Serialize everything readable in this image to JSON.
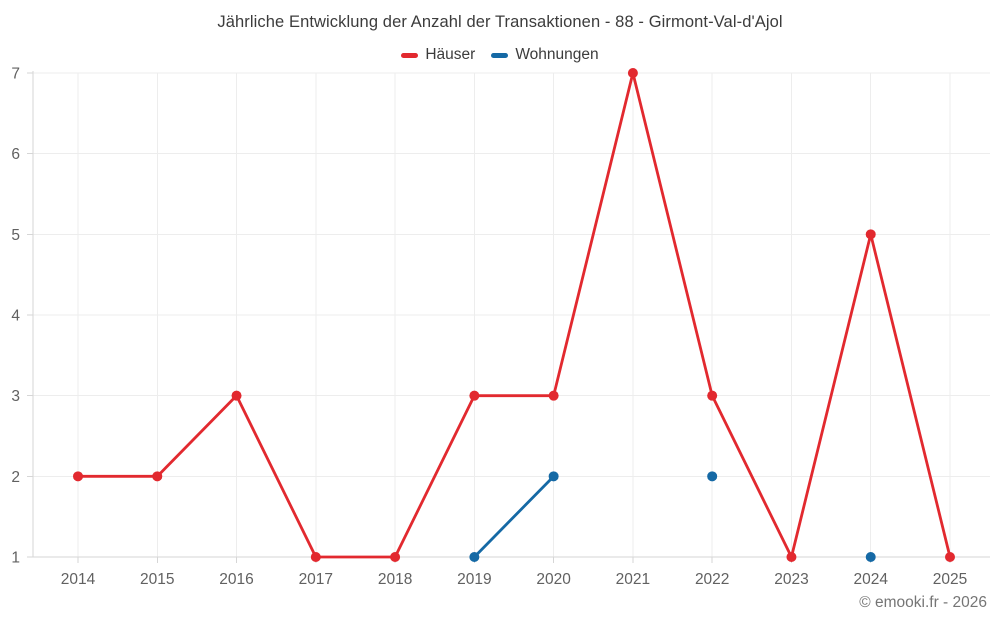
{
  "title": "Jährliche Entwicklung der Anzahl der Transaktionen - 88 - Girmont-Val-d'Ajol",
  "footer": "© emooki.fr - 2026",
  "colors": {
    "haeuser": "#e2292f",
    "wohnungen": "#1569a5",
    "grid": "#ededed",
    "axis": "#d6d6d6",
    "tick_label": "#616161",
    "title_text": "#3c3c3c",
    "footer_text": "#757575"
  },
  "chart_data": {
    "type": "line",
    "title": "Jährliche Entwicklung der Anzahl der Transaktionen - 88 - Girmont-Val-d'Ajol",
    "categories": [
      "2014",
      "2015",
      "2016",
      "2017",
      "2018",
      "2019",
      "2020",
      "2021",
      "2022",
      "2023",
      "2024",
      "2025"
    ],
    "series": [
      {
        "name": "Häuser",
        "color": "#e2292f",
        "values": [
          2,
          2,
          3,
          1,
          1,
          3,
          3,
          7,
          3,
          1,
          5,
          1
        ]
      },
      {
        "name": "Wohnungen",
        "color": "#1569a5",
        "values": [
          null,
          null,
          null,
          null,
          null,
          1,
          2,
          null,
          2,
          null,
          1,
          null
        ]
      }
    ],
    "xlabel": "",
    "ylabel": "",
    "ylim": [
      1,
      7
    ],
    "yticks": [
      1,
      2,
      3,
      4,
      5,
      6,
      7
    ],
    "grid": true,
    "legend_position": "top",
    "marker": "circle"
  }
}
